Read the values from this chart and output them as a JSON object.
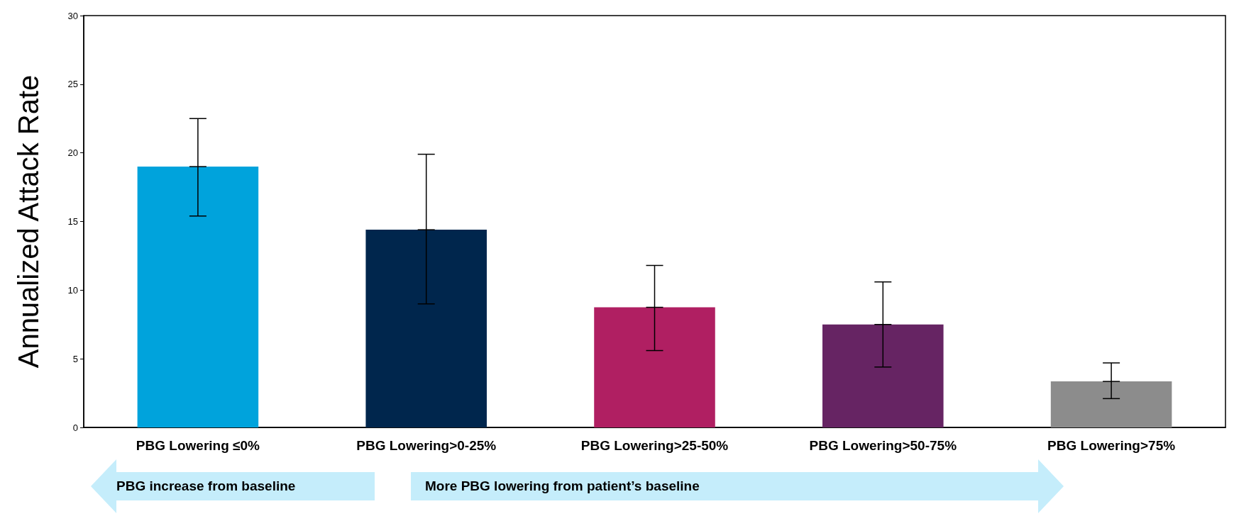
{
  "chart_data": {
    "type": "bar",
    "ylabel": "Annualized Attack Rate",
    "categories": [
      "PBG Lowering ≤0%",
      "PBG Lowering>0-25%",
      "PBG Lowering>25-50%",
      "PBG Lowering>50-75%",
      "PBG Lowering>75%"
    ],
    "values": [
      19.0,
      14.4,
      8.75,
      7.5,
      3.35
    ],
    "colors": [
      "#00a3dc",
      "#00264d",
      "#b01f62",
      "#662463",
      "#8c8c8c"
    ],
    "errors": [
      [
        15.4,
        22.5
      ],
      [
        9.0,
        19.9
      ],
      [
        5.6,
        11.8
      ],
      [
        4.4,
        10.6
      ],
      [
        2.1,
        4.7
      ]
    ],
    "ylim": [
      0,
      30
    ],
    "yticks": [
      0,
      5,
      10,
      15,
      20,
      25,
      30
    ],
    "grid": false,
    "annotations": [
      "PBG increase from baseline",
      "More PBG lowering from patient’s baseline"
    ]
  }
}
